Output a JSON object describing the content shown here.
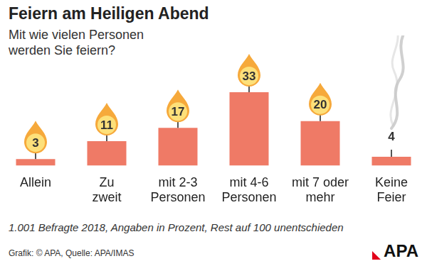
{
  "chart_data": {
    "type": "bar",
    "title": "Feiern am Heiligen Abend",
    "subtitle": "Mit wie vielen Personen werden Sie feiern?",
    "categories": [
      "Allein",
      "Zu\nzweit",
      "mit 2-3\nPersonen",
      "mit 4-6\nPersonen",
      "mit 7 oder\nmehr",
      "Keine\nFeier"
    ],
    "values": [
      3,
      11,
      17,
      33,
      20,
      4
    ],
    "color": "#ef7a66",
    "ylim": [
      0,
      40
    ],
    "grid": false,
    "data_labels": true,
    "tick_labels": "x",
    "note": "1.001 Befragte 2018, Angaben in Prozent, Rest auf 100 unentschieden",
    "source": "Grafik: © APA, Quelle: APA/IMAS",
    "logo": "APA"
  }
}
